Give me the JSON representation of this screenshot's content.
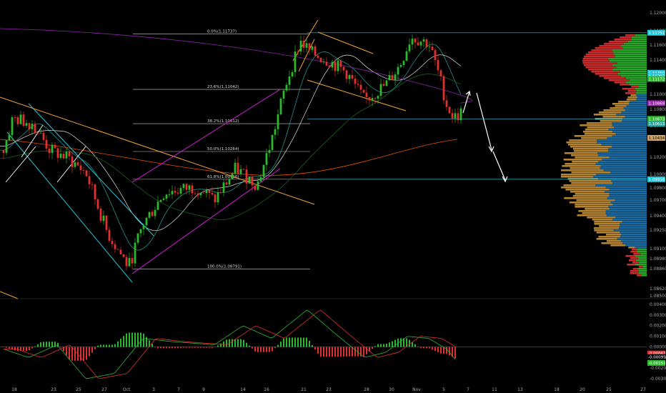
{
  "chart_data": [
    {
      "type": "candlestick",
      "title": "",
      "xlabel": "",
      "ylabel": "",
      "ylim": [
        1.0855,
        1.1205
      ],
      "grid": false,
      "x_tick_labels": [
        "18",
        "23",
        "25",
        "27",
        "Oct",
        "3",
        "7",
        "9",
        "14",
        "16",
        "21",
        "23",
        "28",
        "30",
        "Nov",
        "5",
        "7",
        "11",
        "13",
        "18",
        "20",
        "25",
        "27"
      ],
      "y_tick_labels": [
        "1.12000",
        "1.11800",
        "1.11600",
        "1.11400",
        "1.11000",
        "1.10800",
        "1.10600",
        "1.10200",
        "1.10000",
        "1.09800",
        "1.09700",
        "1.09400",
        "1.09250",
        "1.09100",
        "1.08980",
        "1.08860",
        "1.08620",
        "1.08500"
      ],
      "price_tags": [
        {
          "label": "1.11751",
          "value": 1.11751,
          "color": "#26c6da"
        },
        {
          "label": "1.11250",
          "value": 1.1125,
          "color": "#26c6da"
        },
        {
          "label": "1.11207",
          "value": 1.11207,
          "color": "#26c6da"
        },
        {
          "label": "1.11172",
          "value": 1.11172,
          "color": "#2eb82e"
        },
        {
          "label": "1.10869",
          "value": 1.10869,
          "color": "#9c27b0"
        },
        {
          "label": "1.10673",
          "value": 1.10673,
          "color": "#2eb82e"
        },
        {
          "label": "1.10613",
          "value": 1.10613,
          "color": "#26a69a"
        },
        {
          "label": "1.10434",
          "value": 1.10434,
          "color": "#cfa76a"
        },
        {
          "label": "1.09916",
          "value": 1.09916,
          "color": "#26c6da"
        }
      ],
      "fibonacci": [
        {
          "label": "0.0%(1.11737)",
          "value": 1.11737
        },
        {
          "label": "23.6%(1.11042)",
          "value": 1.11042
        },
        {
          "label": "38.2%(1.10612)",
          "value": 1.10612
        },
        {
          "label": "50.0%(1.10264)",
          "value": 1.10264
        },
        {
          "label": "61.8%(1.09916)",
          "value": 1.09916
        },
        {
          "label": "100.0%(1.08791)",
          "value": 1.08791
        }
      ],
      "colors": {
        "up": "#2eb82e",
        "down": "#e03131",
        "channel_down": "#26c6da",
        "channel_up": "#d81bd8",
        "trendline": "#f2a33a",
        "projection": "#ffffff"
      }
    },
    {
      "type": "line",
      "title": "",
      "ylim": [
        -0.004,
        0.004
      ],
      "y_tick_labels": [
        "0.00400",
        "0.00300",
        "0.00200",
        "0.00100",
        "0.00000",
        "-0.00100",
        "-0.00200",
        "-0.00300"
      ],
      "indicator_tags": [
        {
          "label": "-0.00062",
          "value": -0.00062,
          "color": "#e03131"
        },
        {
          "label": "-0.00095",
          "value": -0.00095,
          "color": "#000000"
        },
        {
          "label": "-0.00151",
          "value": -0.00151,
          "color": "#2eb82e"
        }
      ],
      "colors": {
        "macd": "#2eb82e",
        "signal": "#e03131"
      }
    }
  ]
}
